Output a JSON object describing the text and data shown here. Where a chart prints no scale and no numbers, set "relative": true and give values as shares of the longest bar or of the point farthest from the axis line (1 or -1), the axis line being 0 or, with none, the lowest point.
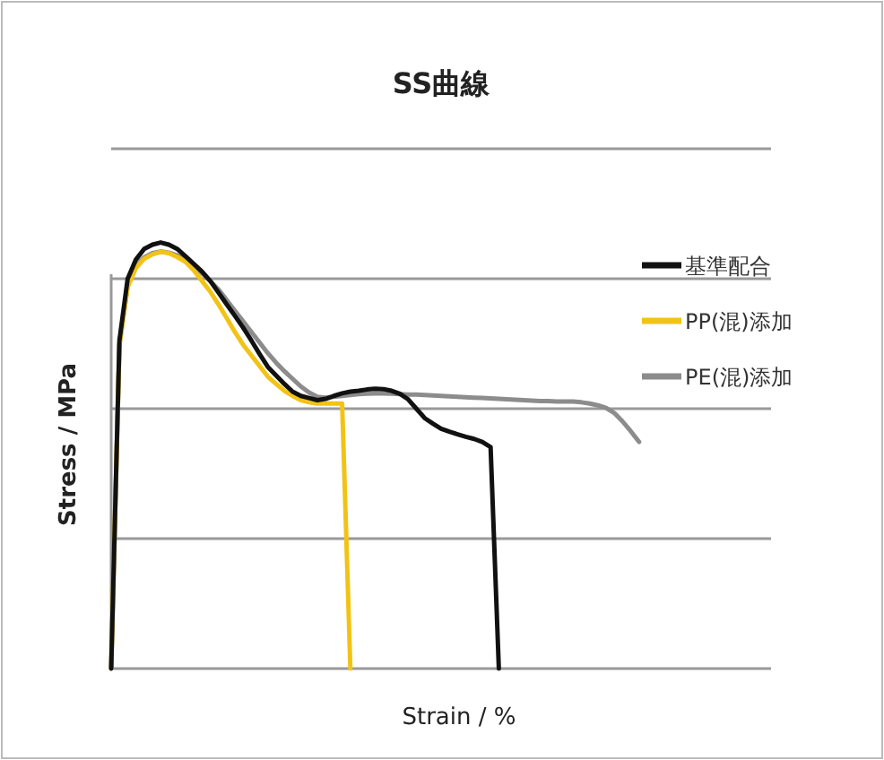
{
  "chart_data": {
    "type": "line",
    "title": "SS曲線",
    "xlabel": "Strain / %",
    "ylabel": "Stress / MPa",
    "relative": true,
    "grid": "y",
    "legend": "right",
    "marker": "none",
    "line_style": "solid",
    "categories": [
      null,
      null,
      null,
      null,
      null,
      null,
      null,
      null,
      null,
      null,
      null,
      null,
      null,
      null,
      null,
      null,
      null,
      null,
      null,
      null,
      null,
      null,
      null,
      null,
      null,
      null,
      null,
      null,
      null,
      null,
      null,
      null,
      null,
      null,
      null,
      null,
      null,
      null,
      null,
      null,
      null,
      null,
      null,
      null,
      null,
      null,
      null,
      null,
      null,
      null,
      null,
      null,
      null,
      null,
      null,
      null,
      null,
      null,
      null,
      null,
      null,
      null,
      null,
      null,
      null,
      null,
      null,
      null,
      null,
      null,
      null,
      null,
      null,
      null,
      null,
      null,
      null,
      null,
      null,
      null,
      null
    ],
    "series": [
      {
        "name": "基準配合",
        "color": "#111111",
        "values": [
          0,
          0.77,
          0.915,
          0.96,
          0.985,
          0.995,
          1,
          0.995,
          0.985,
          0.968,
          0.95,
          0.932,
          0.91,
          0.883,
          0.855,
          0.828,
          0.8,
          0.77,
          0.738,
          0.708,
          0.688,
          0.668,
          0.65,
          0.64,
          0.635,
          0.63,
          0.633,
          0.64,
          0.646,
          0.65,
          0.652,
          0.655,
          0.657,
          0.656,
          0.652,
          0.645,
          0.632,
          0.61,
          0.588,
          0.575,
          0.563,
          0.556,
          0.55,
          0.544,
          0.539,
          0.532,
          0.52,
          0,
          null,
          null,
          null,
          null,
          null,
          null,
          null,
          null,
          null,
          null,
          null,
          null,
          null,
          null,
          null,
          null,
          null,
          null,
          null,
          null,
          null,
          null,
          null,
          null,
          null,
          null,
          null,
          null,
          null,
          null,
          null,
          null,
          null
        ]
      },
      {
        "name": "PP(混)添加",
        "color": "#f2c316",
        "values": [
          0,
          0.76,
          0.895,
          0.94,
          0.962,
          0.972,
          0.978,
          0.975,
          0.966,
          0.955,
          0.935,
          0.91,
          0.885,
          0.855,
          0.823,
          0.79,
          0.76,
          0.735,
          0.71,
          0.685,
          0.668,
          0.652,
          0.64,
          0.63,
          0.625,
          0.622,
          0.622,
          0.622,
          0.622,
          0,
          null,
          null,
          null,
          null,
          null,
          null,
          null,
          null,
          null,
          null,
          null,
          null,
          null,
          null,
          null,
          null,
          null,
          null,
          null,
          null,
          null,
          null,
          null,
          null,
          null,
          null,
          null,
          null,
          null,
          null,
          null,
          null,
          null,
          null,
          null,
          null,
          null,
          null,
          null,
          null,
          null,
          null,
          null,
          null,
          null,
          null,
          null,
          null,
          null,
          null,
          null
        ]
      },
      {
        "name": "PE(混)添加",
        "color": "#8c8c8c",
        "values": [
          0,
          0.76,
          0.9,
          0.945,
          0.965,
          0.975,
          0.979,
          0.976,
          0.97,
          0.96,
          0.945,
          0.928,
          0.91,
          0.89,
          0.865,
          0.84,
          0.815,
          0.79,
          0.765,
          0.74,
          0.718,
          0.698,
          0.68,
          0.662,
          0.648,
          0.638,
          0.636,
          0.638,
          0.64,
          0.642,
          0.644,
          0.645,
          0.646,
          0.646,
          0.645,
          0.644,
          0.643,
          0.643,
          0.642,
          0.641,
          0.64,
          0.639,
          0.638,
          0.637,
          0.636,
          0.635,
          0.634,
          0.633,
          0.632,
          0.631,
          0.63,
          0.629,
          0.628,
          0.628,
          0.627,
          0.627,
          0.627,
          0.625,
          0.622,
          0.618,
          0.612,
          0.6,
          0.58,
          0.557,
          0.532,
          null,
          null,
          null,
          null,
          null,
          null,
          null,
          null,
          null,
          null,
          null,
          null,
          null,
          null,
          null,
          null
        ]
      }
    ]
  }
}
